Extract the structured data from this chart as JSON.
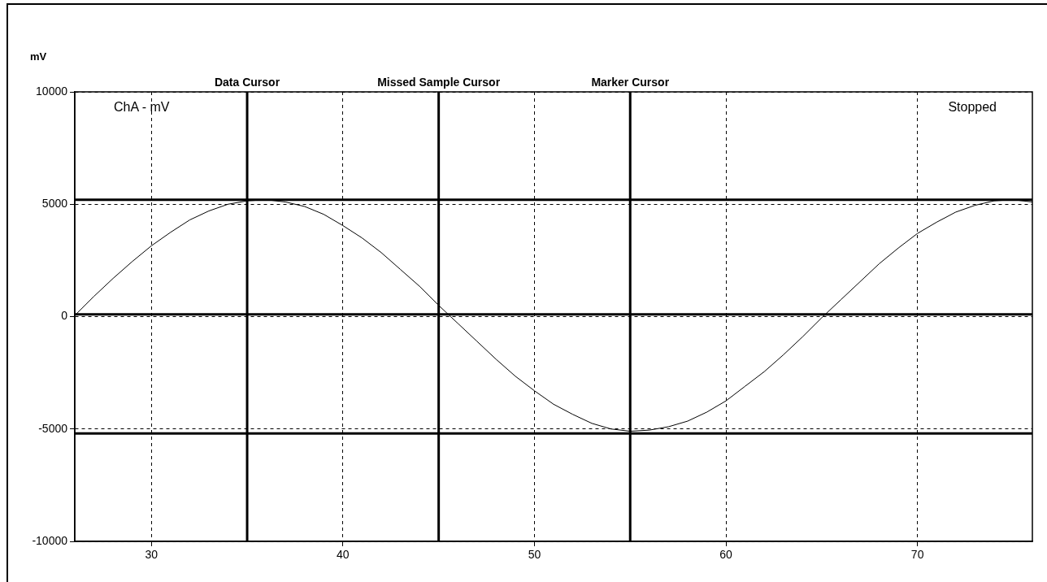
{
  "chart_data": {
    "type": "line",
    "ylabel": "mV",
    "annotations": [
      "ChA - mV",
      "Stopped"
    ],
    "x": [
      26,
      27,
      28,
      29,
      30,
      31,
      32,
      33,
      34,
      35,
      36,
      37,
      38,
      39,
      40,
      41,
      42,
      43,
      44,
      45,
      46,
      47,
      48,
      49,
      50,
      51,
      52,
      53,
      54,
      55,
      56,
      57,
      58,
      59,
      60,
      61,
      62,
      63,
      64,
      65,
      66,
      67,
      68,
      69,
      70,
      71,
      72,
      73,
      74,
      75,
      76
    ],
    "series": [
      {
        "color": "#000000",
        "values": [
          50,
          900,
          1700,
          2450,
          3150,
          3750,
          4300,
          4700,
          5000,
          5150,
          5200,
          5100,
          4900,
          4550,
          4050,
          3500,
          2850,
          2100,
          1350,
          500,
          -300,
          -1100,
          -1900,
          -2650,
          -3300,
          -3900,
          -4350,
          -4750,
          -5000,
          -5100,
          -5050,
          -4900,
          -4650,
          -4250,
          -3750,
          -3100,
          -2450,
          -1700,
          -900,
          -50,
          750,
          1550,
          2350,
          3050,
          3700,
          4200,
          4650,
          4950,
          5150,
          5200,
          5100
        ]
      }
    ],
    "xlim": [
      26,
      76
    ],
    "xticks": [
      30,
      40,
      50,
      60,
      70
    ],
    "ylim": [
      -10000,
      10000
    ],
    "yticks": [
      -10000,
      -5000,
      0,
      5000,
      10000
    ],
    "grid": true,
    "legend": false,
    "marker": "none",
    "line_style": "solid",
    "ref_lines": [
      {
        "axis": "x",
        "value": 35,
        "label": "Data Cursor",
        "color": "#000000"
      },
      {
        "axis": "x",
        "value": 45,
        "label": "Missed Sample Cursor",
        "color": "#000000"
      },
      {
        "axis": "x",
        "value": 55,
        "label": "Marker Cursor",
        "color": "#000000"
      },
      {
        "axis": "y",
        "value": 5200,
        "color": "#000000"
      },
      {
        "axis": "y",
        "value": 100,
        "color": "#000000"
      },
      {
        "axis": "y",
        "value": -5200,
        "color": "#000000"
      }
    ]
  }
}
